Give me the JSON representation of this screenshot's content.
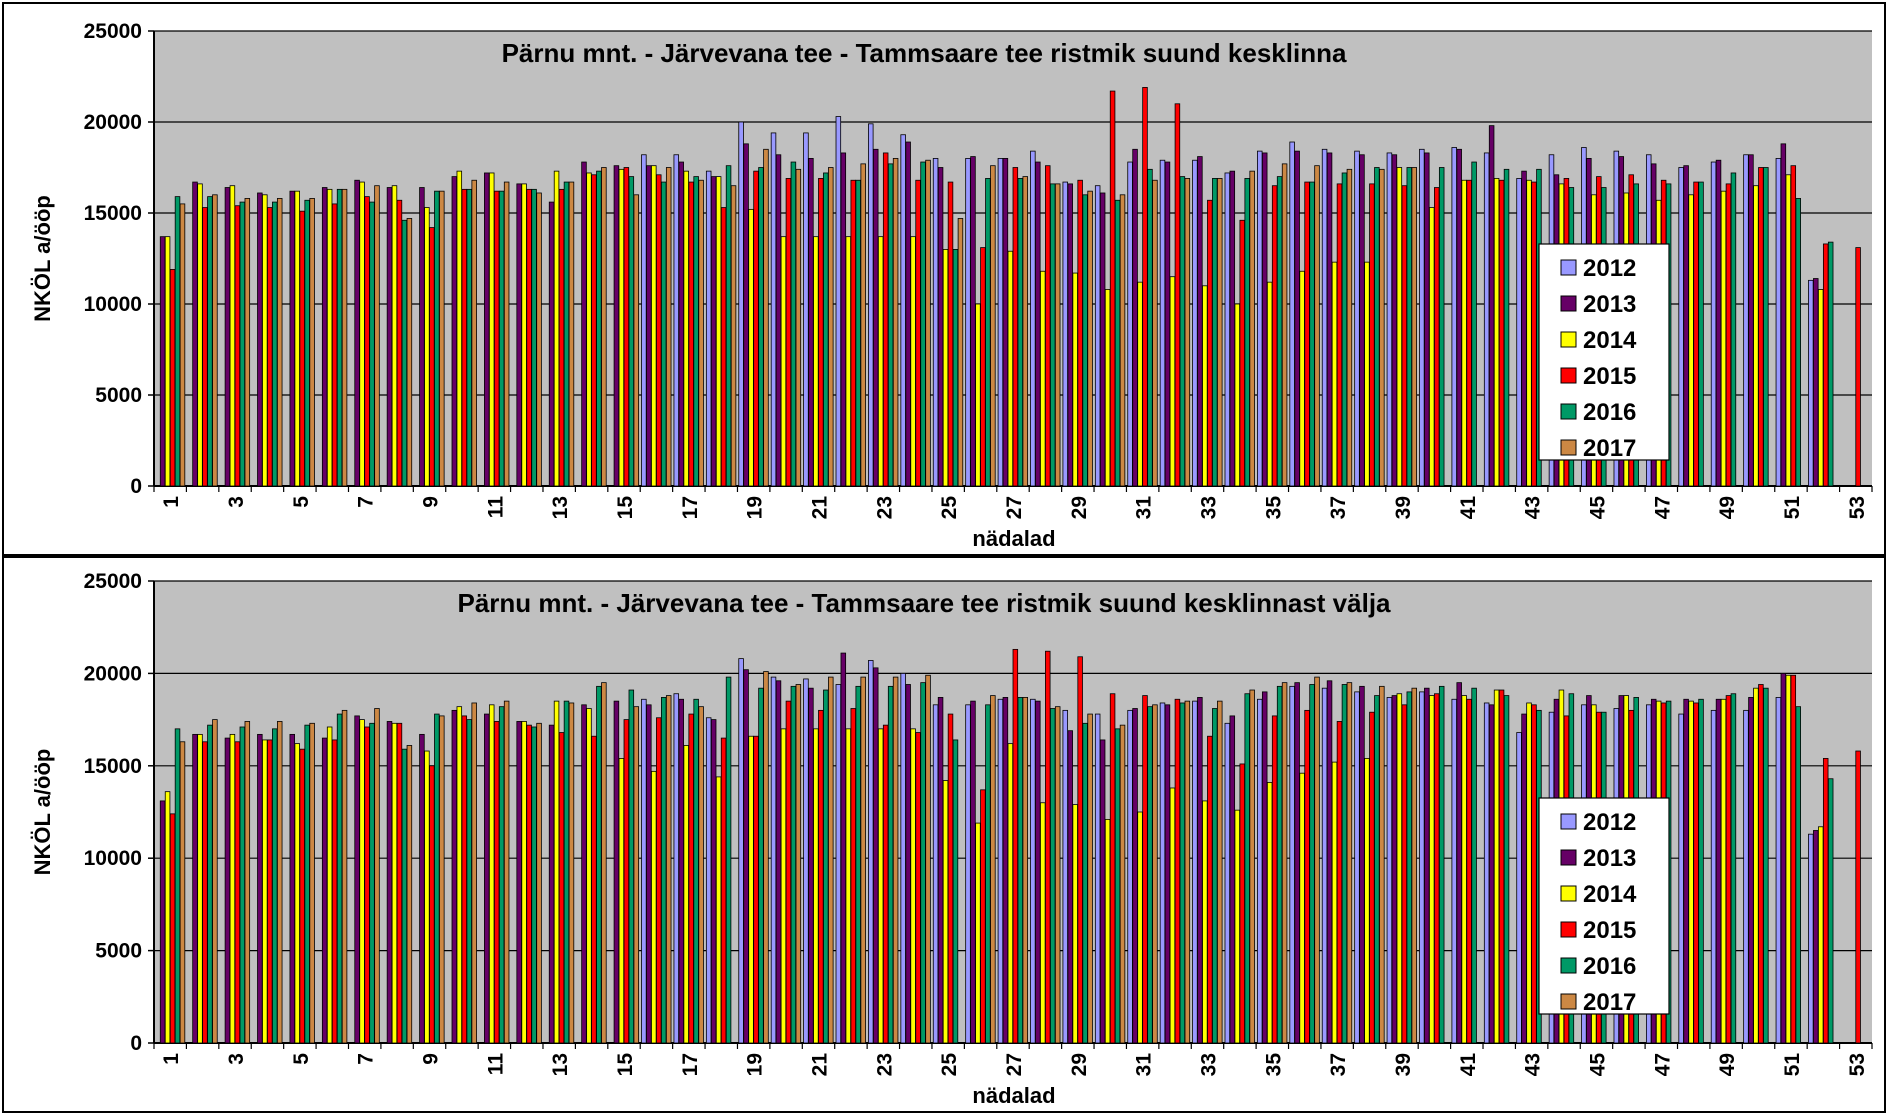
{
  "chart_data": [
    {
      "type": "bar",
      "title": "Pärnu mnt.  - Järvevana tee - Tammsaare tee ristmik suund kesklinna",
      "xlabel": "nädalad",
      "ylabel": "NKÖL a/ööp",
      "ylim": [
        0,
        25000
      ],
      "yticks": [
        0,
        5000,
        10000,
        15000,
        20000,
        25000
      ],
      "x_tick_labels": [
        "1",
        "3",
        "5",
        "7",
        "9",
        "11",
        "13",
        "15",
        "17",
        "19",
        "21",
        "23",
        "25",
        "27",
        "29",
        "31",
        "33",
        "35",
        "37",
        "39",
        "41",
        "43",
        "45",
        "47",
        "49",
        "51",
        "53"
      ],
      "grid": true,
      "legend_position": "right",
      "categories": [
        1,
        2,
        3,
        4,
        5,
        6,
        7,
        8,
        9,
        10,
        11,
        12,
        13,
        14,
        15,
        16,
        17,
        18,
        19,
        20,
        21,
        22,
        23,
        24,
        25,
        26,
        27,
        28,
        29,
        30,
        31,
        32,
        33,
        34,
        35,
        36,
        37,
        38,
        39,
        40,
        41,
        42,
        43,
        44,
        45,
        46,
        47,
        48,
        49,
        50,
        51,
        52,
        53
      ],
      "series": [
        {
          "name": "2012",
          "color": "#9999ff",
          "values": [
            null,
            null,
            null,
            null,
            null,
            null,
            null,
            null,
            null,
            null,
            null,
            null,
            null,
            null,
            null,
            18200,
            18200,
            17300,
            20000,
            19400,
            19400,
            20300,
            19900,
            19300,
            18000,
            18000,
            18000,
            18400,
            16700,
            16500,
            17800,
            17900,
            17900,
            17200,
            18400,
            18900,
            18500,
            18400,
            18300,
            18500,
            18600,
            18300,
            16900,
            18200,
            18600,
            18400,
            18200,
            17500,
            17800,
            18200,
            18000,
            11300,
            null
          ]
        },
        {
          "name": "2013",
          "color": "#660066",
          "values": [
            13700,
            16700,
            16400,
            16100,
            16200,
            16400,
            16800,
            16400,
            16400,
            17000,
            17200,
            16600,
            15600,
            17800,
            17600,
            17600,
            17800,
            17000,
            18800,
            18200,
            18000,
            18300,
            18500,
            18900,
            17500,
            18100,
            18000,
            17800,
            16600,
            16100,
            18500,
            17800,
            18100,
            17300,
            18300,
            18400,
            18300,
            18200,
            18200,
            18300,
            18500,
            19800,
            17300,
            17100,
            18000,
            18100,
            17700,
            17600,
            17900,
            18200,
            18800,
            11400,
            null
          ]
        },
        {
          "name": "2014",
          "color": "#ffff00",
          "values": [
            13700,
            16600,
            16500,
            16000,
            16200,
            16300,
            16700,
            16500,
            15300,
            17300,
            17200,
            16600,
            17300,
            17200,
            17400,
            17600,
            17300,
            17000,
            15200,
            13700,
            13700,
            13700,
            13700,
            13700,
            13000,
            10000,
            12900,
            11800,
            11700,
            10800,
            11200,
            11500,
            11000,
            10000,
            11200,
            11800,
            12300,
            12300,
            17500,
            15300,
            16800,
            16900,
            16800,
            16600,
            16000,
            16100,
            15700,
            16000,
            16200,
            16500,
            17100,
            10800,
            null
          ]
        },
        {
          "name": "2015",
          "color": "#ff0000",
          "values": [
            11900,
            15300,
            15400,
            15300,
            15100,
            15500,
            15900,
            15700,
            14200,
            16300,
            16200,
            16300,
            16300,
            17100,
            17500,
            17100,
            16700,
            15300,
            17300,
            16900,
            16900,
            16800,
            18300,
            16800,
            16700,
            13100,
            17500,
            17600,
            16800,
            21700,
            21900,
            21000,
            15700,
            14600,
            16500,
            16700,
            16600,
            16600,
            16500,
            16400,
            16800,
            16800,
            16700,
            16900,
            17000,
            17100,
            16800,
            16700,
            16600,
            17500,
            17600,
            13300,
            13100
          ]
        },
        {
          "name": "2016",
          "color": "#009966",
          "values": [
            15900,
            15900,
            15600,
            15600,
            15700,
            16300,
            15600,
            14600,
            16200,
            16300,
            16200,
            16300,
            16700,
            17300,
            17000,
            16700,
            17000,
            17600,
            17500,
            17800,
            17200,
            16800,
            17700,
            17800,
            13000,
            16900,
            16900,
            16600,
            16000,
            15700,
            17400,
            17000,
            16900,
            16900,
            17000,
            16700,
            17200,
            17500,
            17500,
            17500,
            17800,
            17400,
            17400,
            16400,
            16400,
            16600,
            16600,
            16700,
            17200,
            17500,
            15800,
            13400,
            null
          ]
        },
        {
          "name": "2017",
          "color": "#cc8844",
          "values": [
            15500,
            16000,
            15800,
            15800,
            15800,
            16300,
            16500,
            14700,
            16200,
            16800,
            16700,
            16100,
            16700,
            17500,
            16000,
            17500,
            16800,
            16500,
            18500,
            17400,
            17500,
            17700,
            18000,
            17900,
            14700,
            17600,
            17000,
            16600,
            16200,
            16000,
            16800,
            16900,
            16900,
            17300,
            17700,
            17600,
            17400,
            17400,
            17500,
            null,
            null,
            null,
            null,
            null,
            null,
            null,
            null,
            null,
            null,
            null,
            null,
            null,
            null
          ]
        }
      ]
    },
    {
      "type": "bar",
      "title": "Pärnu mnt.  - Järvevana tee - Tammsaare tee ristmik suund kesklinnast välja",
      "xlabel": "nädalad",
      "ylabel": "NKÖL a/ööp",
      "ylim": [
        0,
        25000
      ],
      "yticks": [
        0,
        5000,
        10000,
        15000,
        20000,
        25000
      ],
      "x_tick_labels": [
        "1",
        "3",
        "5",
        "7",
        "9",
        "11",
        "13",
        "15",
        "17",
        "19",
        "21",
        "23",
        "25",
        "27",
        "29",
        "31",
        "33",
        "35",
        "37",
        "39",
        "41",
        "43",
        "45",
        "47",
        "49",
        "51",
        "53"
      ],
      "grid": true,
      "legend_position": "right",
      "categories": [
        1,
        2,
        3,
        4,
        5,
        6,
        7,
        8,
        9,
        10,
        11,
        12,
        13,
        14,
        15,
        16,
        17,
        18,
        19,
        20,
        21,
        22,
        23,
        24,
        25,
        26,
        27,
        28,
        29,
        30,
        31,
        32,
        33,
        34,
        35,
        36,
        37,
        38,
        39,
        40,
        41,
        42,
        43,
        44,
        45,
        46,
        47,
        48,
        49,
        50,
        51,
        52,
        53
      ],
      "series": [
        {
          "name": "2012",
          "color": "#9999ff",
          "values": [
            null,
            null,
            null,
            null,
            null,
            null,
            null,
            null,
            null,
            null,
            null,
            null,
            null,
            null,
            null,
            18600,
            18900,
            17600,
            20800,
            19800,
            19700,
            19400,
            20700,
            20000,
            18300,
            18300,
            18600,
            18600,
            18000,
            17800,
            18000,
            18400,
            18500,
            17300,
            18600,
            19300,
            19200,
            19000,
            18700,
            19000,
            18600,
            18400,
            16800,
            17900,
            18300,
            18100,
            18300,
            17800,
            18000,
            18000,
            18700,
            11300,
            null
          ]
        },
        {
          "name": "2013",
          "color": "#660066",
          "values": [
            13100,
            16700,
            16500,
            16700,
            16700,
            16500,
            17700,
            17400,
            16700,
            18000,
            17800,
            17400,
            17200,
            18300,
            18500,
            18300,
            18600,
            17500,
            20200,
            19600,
            19200,
            21100,
            20300,
            19400,
            18700,
            18500,
            18700,
            18500,
            16900,
            16400,
            18100,
            18300,
            18700,
            17700,
            19000,
            19500,
            19600,
            19300,
            18800,
            19200,
            19500,
            18300,
            17800,
            18600,
            18800,
            18800,
            18600,
            18600,
            18600,
            18700,
            20000,
            11500,
            null
          ]
        },
        {
          "name": "2014",
          "color": "#ffff00",
          "values": [
            13600,
            16700,
            16700,
            16400,
            16200,
            17100,
            17500,
            17300,
            15800,
            18200,
            18300,
            17400,
            18500,
            18100,
            15400,
            14700,
            16100,
            14400,
            16600,
            17000,
            17000,
            17000,
            17000,
            17000,
            14200,
            11900,
            16200,
            13000,
            12900,
            12100,
            12500,
            13800,
            13100,
            12600,
            14100,
            14600,
            15200,
            15400,
            18900,
            18800,
            18800,
            19100,
            18400,
            19100,
            18300,
            18800,
            18500,
            18500,
            18600,
            19200,
            19900,
            11700,
            null
          ]
        },
        {
          "name": "2015",
          "color": "#ff0000",
          "values": [
            12400,
            16300,
            16300,
            16400,
            15900,
            16400,
            17100,
            17300,
            15000,
            17700,
            17400,
            17200,
            16800,
            16600,
            17500,
            17600,
            17800,
            16500,
            16600,
            18500,
            18000,
            18100,
            17200,
            16800,
            17800,
            13700,
            21300,
            21200,
            20900,
            18900,
            18800,
            18600,
            16600,
            15100,
            17700,
            18000,
            17400,
            17900,
            18300,
            18900,
            18600,
            19100,
            18300,
            17700,
            17900,
            18000,
            18400,
            18400,
            18800,
            19400,
            19900,
            15400,
            15800
          ]
        },
        {
          "name": "2016",
          "color": "#009966",
          "values": [
            17000,
            17200,
            17100,
            17000,
            17200,
            17800,
            17300,
            15900,
            17800,
            17500,
            18200,
            17100,
            18500,
            19300,
            19100,
            18700,
            18600,
            19800,
            19200,
            19300,
            19100,
            19300,
            19300,
            19500,
            16400,
            18300,
            18700,
            18100,
            17300,
            17000,
            18200,
            18400,
            18100,
            18900,
            19300,
            19400,
            19400,
            18800,
            19000,
            19300,
            19200,
            18800,
            18000,
            18900,
            17900,
            18700,
            18500,
            18600,
            18900,
            19200,
            18200,
            14300,
            null
          ]
        },
        {
          "name": "2017",
          "color": "#cc8844",
          "values": [
            16300,
            17500,
            17400,
            17400,
            17300,
            18000,
            18100,
            16100,
            17700,
            18400,
            18500,
            17300,
            18400,
            19500,
            18200,
            18800,
            18200,
            null,
            20100,
            19400,
            19800,
            19800,
            19800,
            19900,
            null,
            18800,
            18700,
            18200,
            17800,
            17200,
            18300,
            18500,
            18500,
            19100,
            19500,
            19800,
            19500,
            19300,
            19200,
            null,
            null,
            null,
            null,
            null,
            null,
            null,
            null,
            null,
            null,
            null,
            null,
            null,
            null
          ]
        }
      ]
    }
  ]
}
